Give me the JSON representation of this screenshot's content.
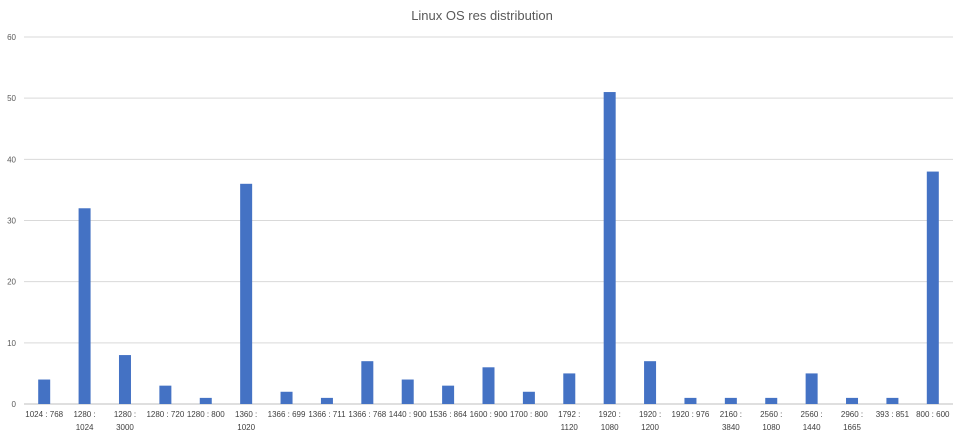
{
  "chart_data": {
    "type": "bar",
    "title": "Linux OS res distribution",
    "xlabel": "",
    "ylabel": "",
    "ylim": [
      0,
      60
    ],
    "yticks": [
      0,
      10,
      20,
      30,
      40,
      50,
      60
    ],
    "grid": true,
    "legend": "none",
    "bar_color": "#4472c4",
    "categories": [
      "1024 : 768",
      "1280 : 1024",
      "1280 : 3000",
      "1280 : 720",
      "1280 : 800",
      "1360 : 1020",
      "1366 : 699",
      "1366 : 711",
      "1366 : 768",
      "1440 : 900",
      "1536 : 864",
      "1600 : 900",
      "1700 : 800",
      "1792 : 1120",
      "1920 : 1080",
      "1920 : 1200",
      "1920 : 976",
      "2160 : 3840",
      "2560 : 1080",
      "2560 : 1440",
      "2960 : 1665",
      "393 : 851",
      "800 : 600"
    ],
    "values": [
      4,
      32,
      8,
      3,
      1,
      36,
      2,
      1,
      7,
      4,
      3,
      6,
      2,
      5,
      51,
      7,
      1,
      1,
      1,
      5,
      1,
      1,
      38
    ]
  }
}
